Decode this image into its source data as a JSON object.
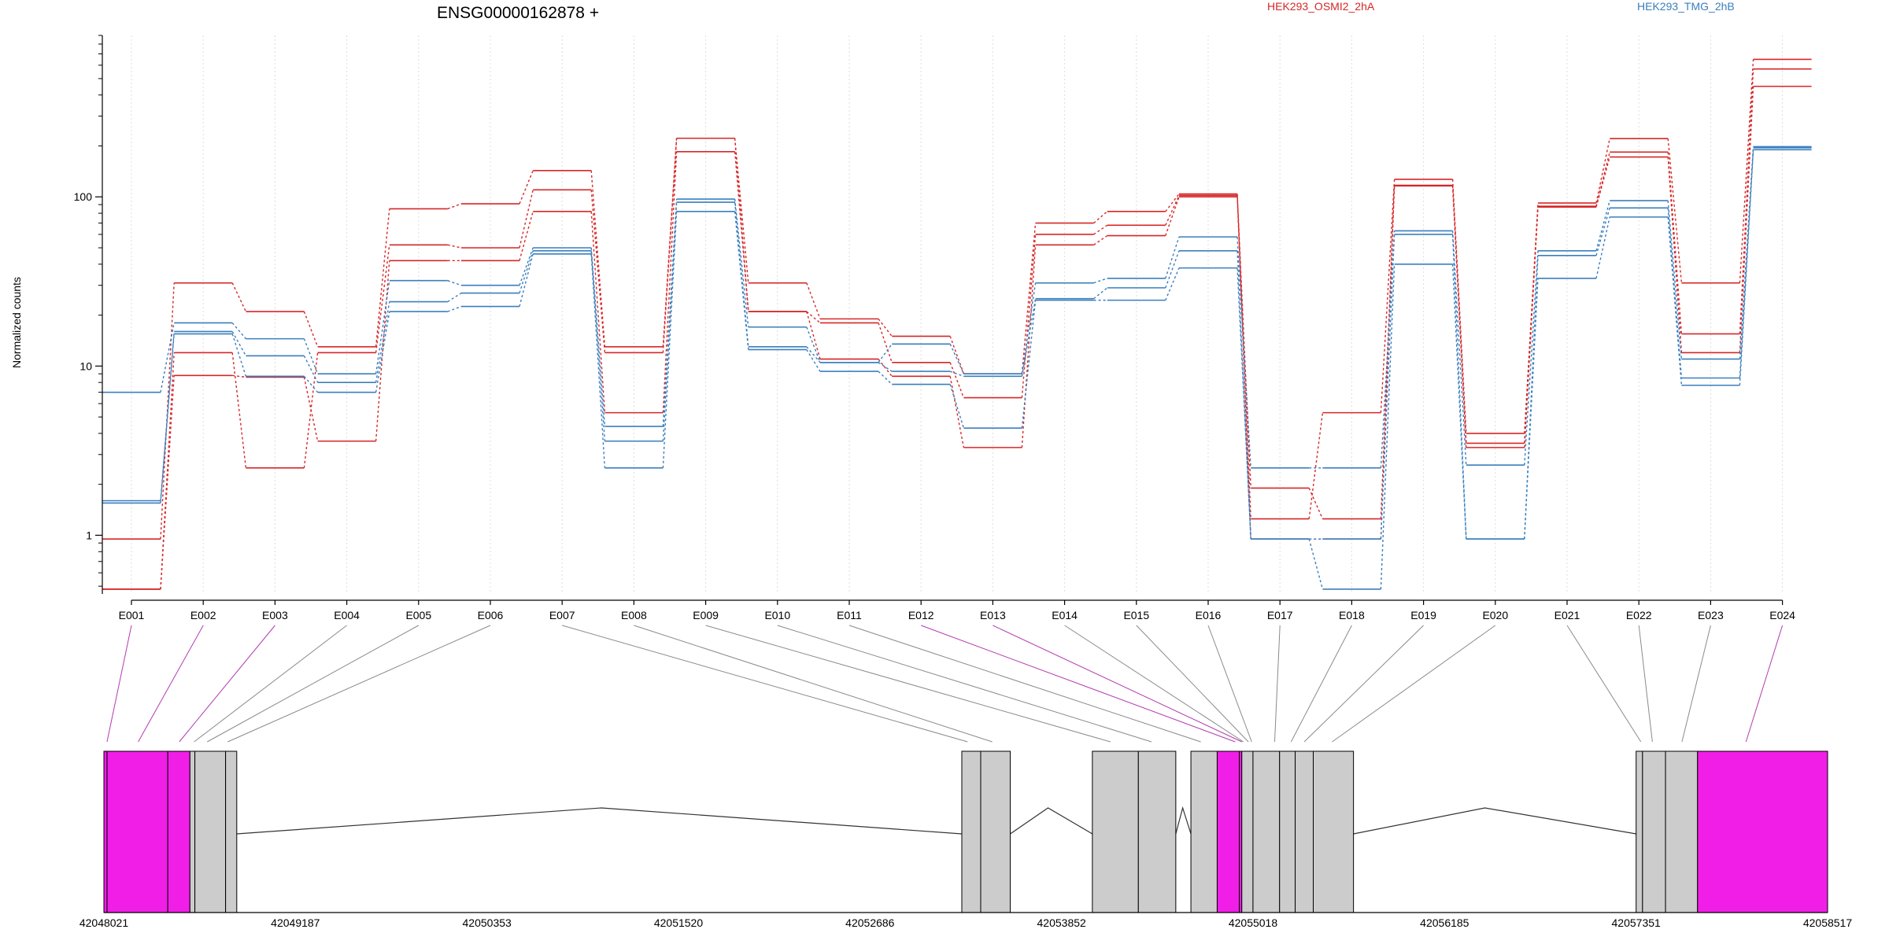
{
  "chart_data": {
    "type": "line",
    "title": "ENSG00000162878 +",
    "ylabel": "Normalized counts",
    "y_scale": "log",
    "ylim": [
      0.45,
      900
    ],
    "y_ticks": [
      {
        "value": 1,
        "label": "1"
      },
      {
        "value": 10,
        "label": "10"
      },
      {
        "value": 100,
        "label": "100"
      }
    ],
    "grid": "vertical-dotted",
    "legend_placement": "top",
    "categories": [
      "E001",
      "E002",
      "E003",
      "E004",
      "E005",
      "E006",
      "E007",
      "E008",
      "E009",
      "E010",
      "E011",
      "E012",
      "E013",
      "E014",
      "E015",
      "E016",
      "E017",
      "E018",
      "E019",
      "E020",
      "E021",
      "E022",
      "E023",
      "E024"
    ],
    "highlighted_exons": [
      "E001",
      "E002",
      "E003",
      "E012",
      "E013",
      "E024"
    ],
    "highlight_color": "#f01ee6",
    "groups": [
      {
        "name": "HEK293_OSMI2_2hA",
        "color": "#d62728"
      },
      {
        "name": "HEK293_TMG_2hB",
        "color": "#3a7fbd"
      }
    ],
    "series": [
      {
        "group": 0,
        "values": [
          0.95,
          31,
          21,
          13,
          85,
          91,
          143,
          13,
          222,
          31,
          19,
          15,
          9,
          70,
          82,
          104,
          1.25,
          5.3,
          127,
          4,
          92,
          221,
          31,
          650
        ]
      },
      {
        "group": 0,
        "values": [
          0.48,
          12,
          2.5,
          12,
          52,
          50,
          110,
          12,
          222,
          21,
          18,
          10.5,
          6.5,
          60,
          68,
          102,
          1.9,
          1.25,
          117,
          3.5,
          88,
          184,
          15.5,
          570
        ]
      },
      {
        "group": 0,
        "values": [
          0.48,
          8.8,
          8.6,
          3.6,
          42,
          42,
          82,
          5.3,
          185,
          21,
          11,
          8.7,
          3.3,
          52,
          59,
          100,
          0.95,
          0.95,
          116,
          3.3,
          87,
          172,
          12,
          450
        ]
      },
      {
        "group": 1,
        "values": [
          7,
          18,
          14.5,
          9,
          32,
          30,
          50,
          4.4,
          97,
          17,
          10.5,
          13.5,
          9,
          31,
          33,
          58,
          2.5,
          2.5,
          63,
          2.6,
          48,
          95,
          11,
          198
        ]
      },
      {
        "group": 1,
        "values": [
          1.6,
          16,
          11.5,
          8,
          24,
          27,
          48,
          3.6,
          93,
          13,
          10.5,
          9.3,
          8.7,
          25,
          29,
          48,
          0.95,
          0.95,
          60,
          0.95,
          45,
          86,
          8.5,
          195
        ]
      },
      {
        "group": 1,
        "values": [
          1.55,
          15.5,
          8.7,
          7,
          21,
          22.5,
          46,
          2.5,
          82,
          12.5,
          9.3,
          7.8,
          4.3,
          24.5,
          24.5,
          38,
          0.95,
          0.48,
          40,
          0.95,
          33,
          76,
          7.7,
          190
        ]
      }
    ],
    "genomic_axis": {
      "range": [
        42048021,
        42058517
      ],
      "tick_labels": [
        "42048021",
        "42049187",
        "42050353",
        "42051520",
        "42052686",
        "42053852",
        "42055018",
        "42056185",
        "42057351",
        "42058517"
      ]
    },
    "exon_blocks": [
      {
        "start": 42048021,
        "end": 42048040,
        "highlight": true
      },
      {
        "start": 42048040,
        "end": 42048410,
        "highlight": true
      },
      {
        "start": 42048410,
        "end": 42048545,
        "highlight": true
      },
      {
        "start": 42048545,
        "end": 42048575,
        "highlight": false
      },
      {
        "start": 42048575,
        "end": 42048762,
        "highlight": false
      },
      {
        "start": 42048762,
        "end": 42048830,
        "highlight": false
      },
      {
        "start": 42053245,
        "end": 42053360,
        "highlight": false
      },
      {
        "start": 42053360,
        "end": 42053540,
        "highlight": false
      },
      {
        "start": 42054040,
        "end": 42054320,
        "highlight": false
      },
      {
        "start": 42054320,
        "end": 42054548,
        "highlight": false
      },
      {
        "start": 42054640,
        "end": 42054800,
        "highlight": false
      },
      {
        "start": 42054800,
        "end": 42054935,
        "highlight": true
      },
      {
        "start": 42054935,
        "end": 42054950,
        "highlight": true
      },
      {
        "start": 42054950,
        "end": 42055018,
        "highlight": false
      },
      {
        "start": 42055018,
        "end": 42055180,
        "highlight": false
      },
      {
        "start": 42055180,
        "end": 42055275,
        "highlight": false
      },
      {
        "start": 42055275,
        "end": 42055385,
        "highlight": false
      },
      {
        "start": 42055385,
        "end": 42055630,
        "highlight": false
      },
      {
        "start": 42057351,
        "end": 42057390,
        "highlight": false
      },
      {
        "start": 42057390,
        "end": 42057530,
        "highlight": false
      },
      {
        "start": 42057530,
        "end": 42057725,
        "highlight": false
      },
      {
        "start": 42057725,
        "end": 42058517,
        "highlight": true
      }
    ],
    "introns": [
      {
        "start": 42048830,
        "end": 42053245,
        "peak": 42051050
      },
      {
        "start": 42053540,
        "end": 42054040,
        "peak": 42053770
      },
      {
        "start": 42054548,
        "end": 42054640,
        "peak": 42054590
      },
      {
        "start": 42055630,
        "end": 42057351,
        "peak": 42056430
      }
    ],
    "exon_anchor_coords": [
      42048040,
      42048230,
      42048480,
      42048570,
      42048650,
      42048775,
      42053280,
      42053430,
      42054150,
      42054400,
      42054700,
      42054910,
      42054950,
      42054960,
      42054990,
      42055010,
      42055150,
      42055250,
      42055330,
      42055500,
      42057380,
      42057450,
      42057630,
      42058020
    ]
  }
}
